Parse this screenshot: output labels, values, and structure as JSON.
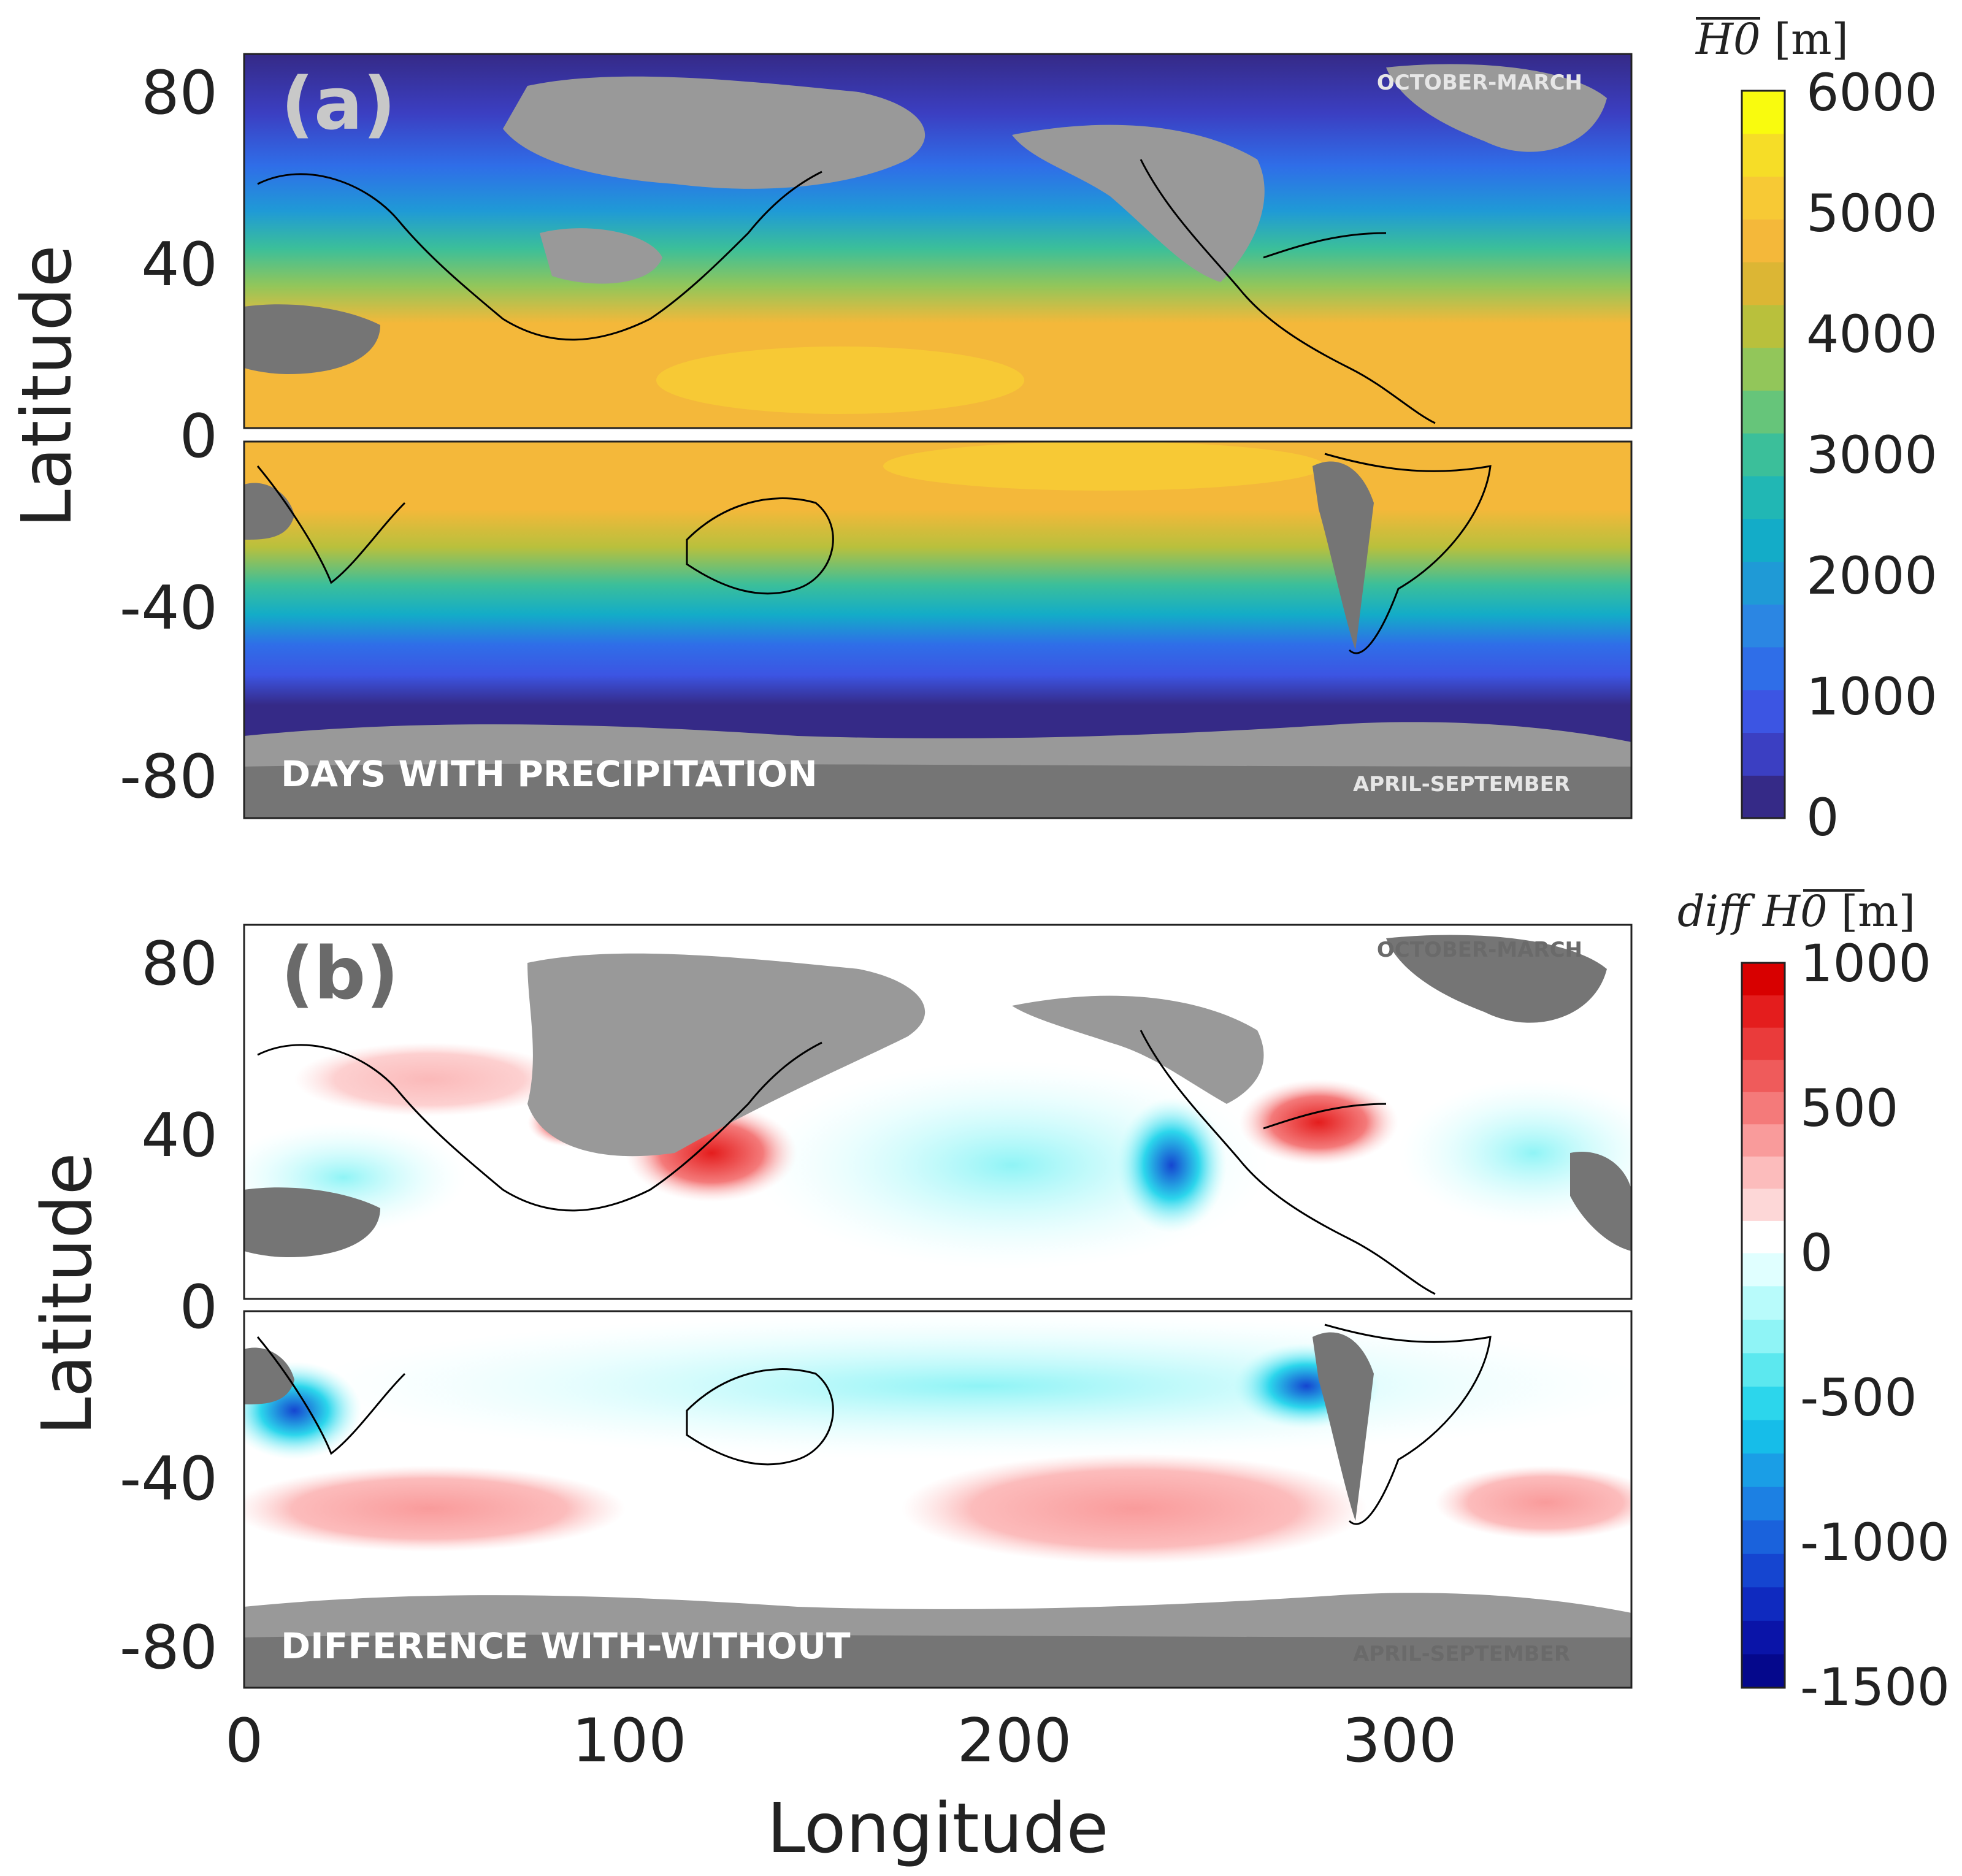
{
  "panel_a": {
    "label": "(a)",
    "title_left": "DAYS WITH PRECIPITATION",
    "season_north": "OCTOBER-MARCH",
    "season_south": "APRIL-SEPTEMBER",
    "ylabel": "Latitude",
    "colorbar": {
      "title": "H0 [m]",
      "ticks": [
        "6000",
        "5000",
        "4000",
        "3000",
        "2000",
        "1000",
        "0"
      ],
      "colors": [
        "#352a87",
        "#3b3fc2",
        "#3c55e3",
        "#2f6ee8",
        "#2b86e3",
        "#1f9ad6",
        "#13acc8",
        "#21b7b4",
        "#3bbf9a",
        "#66c57a",
        "#92c65a",
        "#b9c03c",
        "#dcb634",
        "#f4b83a",
        "#f7c935",
        "#f6dd27",
        "#f9fb0e"
      ],
      "range": [
        0,
        6000
      ]
    },
    "colors": {
      "ocean_band_equator": "#f4b83a",
      "land_masked": "#999999"
    }
  },
  "panel_b": {
    "label": "(b)",
    "title_left": "DIFFERENCE WITH-WITHOUT",
    "season_north": "OCTOBER-MARCH",
    "season_south": "APRIL-SEPTEMBER",
    "ylabel": "Latitude",
    "colorbar": {
      "title": "diff H0 [m]",
      "ticks": [
        "1000",
        "500",
        "0",
        "-500",
        "-1000",
        "-1500"
      ],
      "colors_pos": [
        "#ffffff",
        "#fdd7d7",
        "#fcbcbc",
        "#f99b9b",
        "#f47a7a",
        "#ef5b5b",
        "#ea3b3b",
        "#e41d1d",
        "#d80000"
      ],
      "colors_neg": [
        "#e0ffff",
        "#b8fbfb",
        "#8ff4f6",
        "#5ce8ef",
        "#2cd6ec",
        "#16bde9",
        "#1a9ee6",
        "#1c80e3",
        "#1a62dc",
        "#1545d0",
        "#0f2abf",
        "#0a14a8",
        "#05088c"
      ],
      "range": [
        -1500,
        1000
      ]
    }
  },
  "axes": {
    "xlabel": "Longitude",
    "xticks": [
      "0",
      "100",
      "200",
      "300"
    ],
    "yticks_north": [
      "80",
      "40",
      "0"
    ],
    "yticks_south": [
      "-40",
      "-80"
    ],
    "xlim": [
      0,
      360
    ]
  }
}
